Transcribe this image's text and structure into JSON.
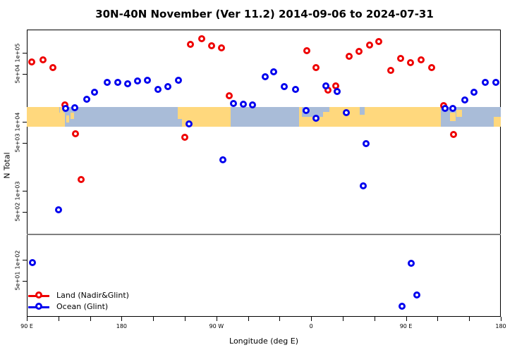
{
  "title": "30N-40N November (Ver 11.2)   2014-09-06 to 2024-07-31",
  "legend": {
    "items": [
      {
        "label": "Land (Nadir&Glint)",
        "color": "#ee0000"
      },
      {
        "label": "Ocean (Glint)",
        "color": "#0000ee"
      }
    ]
  },
  "chart_data": {
    "type": "scatter",
    "title": "30N-40N November (Ver 11.2)   2014-09-06 to 2024-07-31",
    "xlabel": "Longitude (deg E)",
    "ylabel": "N Total",
    "x_axis": {
      "range": [
        90,
        540
      ],
      "minor_tick_step": 30,
      "ticks": [
        {
          "lon": 90,
          "label": "90 E"
        },
        {
          "lon": 180,
          "label": "180"
        },
        {
          "lon": 270,
          "label": "90 W"
        },
        {
          "lon": 360,
          "label": "0"
        },
        {
          "lon": 450,
          "label": "90 E"
        },
        {
          "lon": 540,
          "label": "180"
        }
      ]
    },
    "y_axis": {
      "scale": "log10",
      "range": [
        12,
        220000
      ],
      "ticks": [
        {
          "value": 100000.0,
          "label": "1e+05"
        },
        {
          "value": 50000.0,
          "label": "5e+04"
        },
        {
          "value": 10000.0,
          "label": "1e+04"
        },
        {
          "value": 5000.0,
          "label": "5e+03"
        },
        {
          "value": 1000.0,
          "label": "1e+03"
        },
        {
          "value": 500.0,
          "label": "5e+02"
        },
        {
          "value": 100.0,
          "label": "1e+02"
        },
        {
          "value": 50.0,
          "label": "5e+01"
        }
      ]
    },
    "separator_line": {
      "value": 233,
      "color": "#808080"
    },
    "map_band": {
      "value_top": 16400,
      "value_bottom": 8500,
      "ocean_color": "#a9bcd8",
      "land_color": "#ffd87d",
      "land_segments": [
        [
          90,
          121,
          0,
          1
        ],
        [
          121,
          126,
          0.3,
          1
        ],
        [
          121.5,
          124.5,
          0,
          0.3
        ],
        [
          127.5,
          130.5,
          0.42,
          0.78
        ],
        [
          131.5,
          135,
          0.28,
          0.6
        ],
        [
          233.5,
          239.5,
          0,
          0.6
        ],
        [
          237,
          283.5,
          0,
          1
        ],
        [
          348.5,
          483,
          0,
          1
        ],
        [
          492,
          497,
          0.3,
          0.72
        ],
        [
          498,
          503.5,
          0.15,
          0.5
        ],
        [
          533,
          540,
          0.5,
          1
        ]
      ],
      "ocean_patches": [
        [
          351,
          371,
          0,
          0.52
        ],
        [
          371,
          377,
          0,
          0.25
        ],
        [
          406,
          411,
          0,
          0.4
        ]
      ]
    },
    "series": [
      {
        "name": "Land (Nadir&Glint)",
        "color": "#ee0000",
        "points": [
          [
            94.7,
            73600.0
          ],
          [
            105.4,
            79000.0
          ],
          [
            114.8,
            61000.0
          ],
          [
            126.2,
            17600.0
          ],
          [
            136.2,
            6700.0
          ],
          [
            141.6,
            1460.0
          ],
          [
            240.0,
            5970.0
          ],
          [
            245.4,
            132000.0
          ],
          [
            256.1,
            160000.0
          ],
          [
            265.4,
            127000.0
          ],
          [
            274.8,
            118000.0
          ],
          [
            282.2,
            23900.0
          ],
          [
            355.9,
            107000.0
          ],
          [
            364.6,
            61000.0
          ],
          [
            375.9,
            28800.0
          ],
          [
            383.3,
            33000.0
          ],
          [
            396.0,
            89000.0
          ],
          [
            405.4,
            105000.0
          ],
          [
            415.5,
            130000.0
          ],
          [
            424.2,
            146000.0
          ],
          [
            435.6,
            55600.0
          ],
          [
            444.9,
            83000.0
          ],
          [
            454.3,
            72000.0
          ],
          [
            464.3,
            79000.0
          ],
          [
            474.4,
            61000.0
          ],
          [
            485.8,
            17200.0
          ],
          [
            495.2,
            6550.0
          ]
        ]
      },
      {
        "name": "Ocean (Glint)",
        "color": "#0000ee",
        "points": [
          [
            95.4,
            91
          ],
          [
            120.1,
            530.0
          ],
          [
            126.8,
            15600.0
          ],
          [
            135.5,
            16000.0
          ],
          [
            146.9,
            21200.0
          ],
          [
            154.3,
            26800.0
          ],
          [
            166.3,
            37300.0
          ],
          [
            176.4,
            37300.0
          ],
          [
            185.8,
            35600.0
          ],
          [
            195.1,
            39000.0
          ],
          [
            204.5,
            40000.0
          ],
          [
            214.6,
            29500.0
          ],
          [
            223.9,
            32400.0
          ],
          [
            234.0,
            40000.0
          ],
          [
            244.0,
            9300.0
          ],
          [
            276.2,
            2810.0
          ],
          [
            286.2,
            18400.0
          ],
          [
            295.6,
            18000.0
          ],
          [
            304.3,
            17600.0
          ],
          [
            316.3,
            45000.0
          ],
          [
            324.4,
            53000.0
          ],
          [
            334.4,
            32400.0
          ],
          [
            345.1,
            29500.0
          ],
          [
            355.2,
            14600.0
          ],
          [
            364.6,
            11200.0
          ],
          [
            373.9,
            33000.0
          ],
          [
            384.6,
            27500.0
          ],
          [
            393.3,
            13600.0
          ],
          [
            409.4,
            1180.0
          ],
          [
            412.1,
            4830.0
          ],
          [
            446.3,
            21
          ],
          [
            455.0,
            89
          ],
          [
            460.3,
            31
          ],
          [
            487.1,
            15600.0
          ],
          [
            494.5,
            15600.0
          ],
          [
            505.8,
            20700.0
          ],
          [
            514.6,
            26800.0
          ],
          [
            525.3,
            37300.0
          ],
          [
            535.3,
            37300.0
          ]
        ]
      }
    ]
  }
}
